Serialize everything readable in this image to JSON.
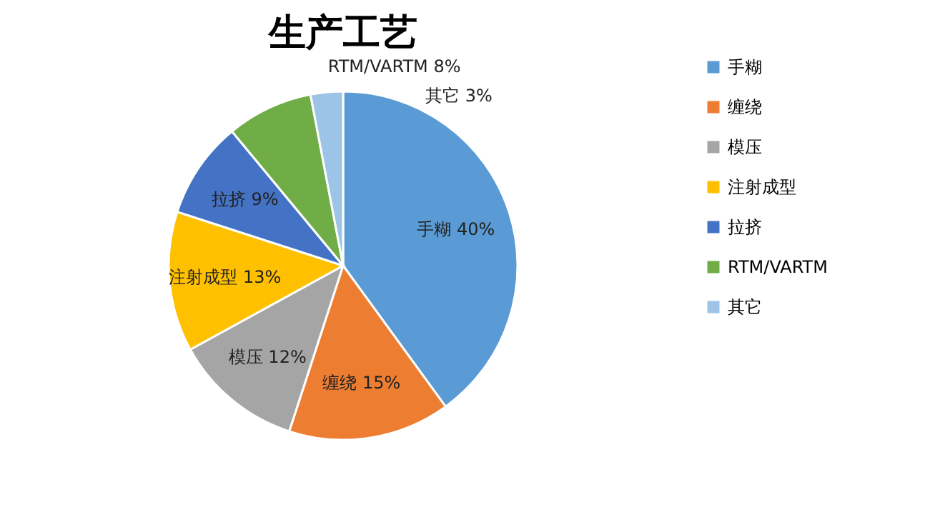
{
  "chart_data": {
    "type": "pie",
    "title": "生产工艺",
    "categories": [
      "手糊",
      "缠绕",
      "模压",
      "注射成型",
      "拉挤",
      "RTM/VARTM",
      "其它"
    ],
    "values": [
      40,
      15,
      12,
      13,
      9,
      8,
      3
    ],
    "value_labels": [
      "40%",
      "15%",
      "12%",
      "13%",
      "9%",
      "8%",
      "3%"
    ],
    "colors": [
      "#5b9bd5",
      "#ed7d31",
      "#a5a5a5",
      "#ffc000",
      "#4472c4",
      "#70ad47",
      "#9dc3e6"
    ],
    "legend": "right"
  }
}
